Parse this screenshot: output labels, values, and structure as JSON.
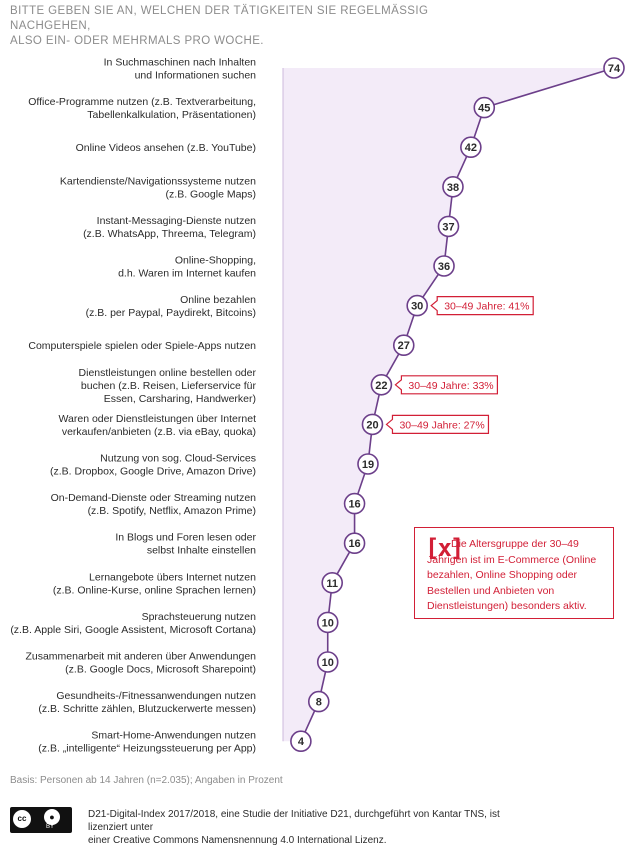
{
  "question": [
    "BITTE GEBEN SIE AN, WELCHEN DER TÄTIGKEITEN SIE REGELMÄSSIG NACHGEHEN,",
    "ALSO EIN- ODER MEHRMALS PRO WOCHE."
  ],
  "chart_data": {
    "type": "line",
    "unit": "%",
    "colors": {
      "line": "#6c3f8a",
      "fill": "#f3ebf8",
      "node_fill": "#ffffff",
      "callout": "#d21f36"
    },
    "categories": [
      [
        "In Suchmaschinen nach Inhalten",
        "und Informationen suchen"
      ],
      [
        "Office-Programme nutzen (z.B. Textverarbeitung,",
        "Tabellenkalkulation, Präsentationen)"
      ],
      [
        "Online Videos ansehen (z.B. YouTube)"
      ],
      [
        "Kartendienste/Navigationssysteme nutzen",
        "(z.B. Google Maps)"
      ],
      [
        "Instant-Messaging-Dienste nutzen",
        "(z.B. WhatsApp, Threema, Telegram)"
      ],
      [
        "Online-Shopping,",
        "d.h. Waren im Internet kaufen"
      ],
      [
        "Online bezahlen",
        "(z.B. per Paypal, Paydirekt, Bitcoins)"
      ],
      [
        "Computerspiele spielen oder Spiele-Apps nutzen"
      ],
      [
        "Dienstleistungen online bestellen oder",
        "buchen (z.B. Reisen, Lieferservice für",
        "Essen, Carsharing, Handwerker)"
      ],
      [
        "Waren oder Dienstleistungen über Internet",
        "verkaufen/anbieten (z.B. via eBay, quoka)"
      ],
      [
        "Nutzung von sog. Cloud-Services",
        "(z.B. Dropbox, Google Drive, Amazon Drive)"
      ],
      [
        "On-Demand-Dienste oder Streaming nutzen",
        "(z.B. Spotify, Netflix, Amazon Prime)"
      ],
      [
        "In Blogs und Foren lesen oder",
        "selbst Inhalte einstellen"
      ],
      [
        "Lernangebote übers Internet nutzen",
        "(z.B. Online-Kurse, online Sprachen lernen)"
      ],
      [
        "Sprachsteuerung nutzen",
        "(z.B. Apple Siri, Google Assistent, Microsoft Cortana)"
      ],
      [
        "Zusammenarbeit mit anderen über Anwendungen",
        "(z.B. Google Docs, Microsoft Sharepoint)"
      ],
      [
        "Gesundheits-/Fitnessanwendungen nutzen",
        "(z.B. Schritte zählen, Blutzuckerwerte messen)"
      ],
      [
        "Smart-Home-Anwendungen nutzen",
        "(z.B. „intelligente“ Heizungssteuerung per App)"
      ]
    ],
    "values": [
      74,
      45,
      42,
      38,
      37,
      36,
      30,
      27,
      22,
      20,
      19,
      16,
      16,
      11,
      10,
      10,
      8,
      4
    ],
    "callouts": [
      {
        "index": 6,
        "text": "30–49 Jahre: 41%"
      },
      {
        "index": 8,
        "text": "30–49 Jahre: 33%"
      },
      {
        "index": 9,
        "text": "30–49 Jahre: 27%"
      }
    ]
  },
  "note": {
    "mark": "[x]",
    "text": "Die Altersgruppe der 30–49 Jährigen ist im E-Commerce (Online bezahlen, Online Shopping oder Bestellen und Anbieten von Dienstleistungen) besonders aktiv."
  },
  "footer": {
    "basis": "Basis: Personen ab 14 Jahren (n=2.035); Angaben in Prozent",
    "license": [
      "D21-Digital-Index 2017/2018, eine Studie der Initiative D21, durchgeführt von Kantar TNS, ist lizenziert unter",
      "einer Creative Commons Namensnennung 4.0 International Lizenz."
    ],
    "logo_cc": "cc",
    "logo_by": "BY"
  }
}
